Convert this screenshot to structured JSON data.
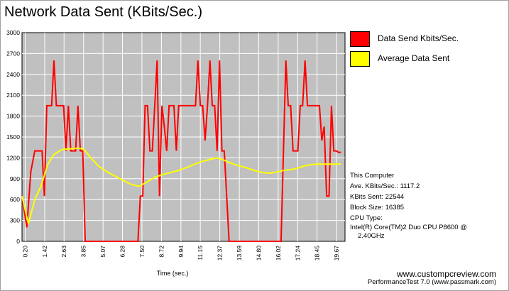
{
  "window": {
    "title": "Network Data Sent (KBits/Sec.)"
  },
  "legend": [
    {
      "label": "Data Send Kbits/Sec.",
      "color": "#ff0000"
    },
    {
      "label": "Average Data Sent",
      "color": "#ffff00"
    }
  ],
  "info": {
    "computer": "This Computer",
    "ave": "Ave. KBits/Sec.: 1117.2",
    "sent": "KBits Sent: 22544",
    "block": "Block Size: 16385",
    "cpu_label": "CPU Type:",
    "cpu_line1": "Intel(R) Core(TM)2 Duo CPU P8600 @",
    "cpu_line2": "2.40GHz"
  },
  "footer": {
    "url": "www.custompcreview.com",
    "product": "PerformanceTest 7.0 (www.passmark.com)"
  },
  "colors": {
    "plot_bg": "#c0c0c0",
    "grid": "#ffffff",
    "send_line": "#ff0000",
    "avg_line": "#ffff00"
  },
  "chart_data": {
    "type": "line",
    "title": "Network Data Sent (KBits/Sec.)",
    "xlabel": "Time (sec.)",
    "ylabel": "",
    "ylim": [
      0,
      3000
    ],
    "xlim": [
      0,
      20.2
    ],
    "yticks": [
      "0",
      "300",
      "600",
      "900",
      "1200",
      "1500",
      "1800",
      "2100",
      "2400",
      "2700",
      "3000"
    ],
    "xticks": [
      "0.20",
      "1.42",
      "2.63",
      "3.85",
      "5.07",
      "6.28",
      "7.50",
      "8.72",
      "9.94",
      "11.15",
      "12.37",
      "13.59",
      "14.80",
      "16.02",
      "17.24",
      "18.45",
      "19.67"
    ],
    "grid": true,
    "legend_position": "right",
    "series": [
      {
        "name": "Data Send Kbits/Sec.",
        "x": [
          0.0,
          0.3,
          0.55,
          0.8,
          1.1,
          1.25,
          1.4,
          1.55,
          1.7,
          1.85,
          2.0,
          2.15,
          2.3,
          2.45,
          2.6,
          2.75,
          2.9,
          3.05,
          3.2,
          3.35,
          3.5,
          3.65,
          3.8,
          3.95,
          4.1,
          4.25,
          7.25,
          7.4,
          7.55,
          7.7,
          7.85,
          8.0,
          8.15,
          8.3,
          8.45,
          8.6,
          8.75,
          8.9,
          9.05,
          9.2,
          9.35,
          9.5,
          9.65,
          9.8,
          9.95,
          10.1,
          10.25,
          10.4,
          10.55,
          10.7,
          10.85,
          11.0,
          11.15,
          11.3,
          11.45,
          11.6,
          11.75,
          11.9,
          12.05,
          12.2,
          12.35,
          12.5,
          12.65,
          12.8,
          12.95,
          13.1,
          16.2,
          16.35,
          16.5,
          16.65,
          16.8,
          16.95,
          17.1,
          17.25,
          17.4,
          17.55,
          17.7,
          17.85,
          18.0,
          18.15,
          18.3,
          18.45,
          18.6,
          18.75,
          18.9,
          19.05,
          19.2,
          19.35,
          19.5,
          19.65,
          19.8,
          19.95
        ],
        "y": [
          650,
          200,
          1000,
          1300,
          1300,
          1300,
          650,
          1950,
          1950,
          1950,
          2600,
          1950,
          1950,
          1950,
          1950,
          1300,
          1950,
          1300,
          1300,
          1300,
          1950,
          1300,
          1300,
          0,
          0,
          0,
          0,
          650,
          650,
          1950,
          1950,
          1300,
          1300,
          1950,
          2600,
          650,
          1950,
          1650,
          1300,
          1950,
          1950,
          1950,
          1300,
          1950,
          1950,
          1950,
          1950,
          1950,
          1950,
          1950,
          1950,
          2600,
          1950,
          1950,
          1450,
          1950,
          2600,
          1950,
          1950,
          1300,
          2600,
          1300,
          1300,
          650,
          0,
          0,
          0,
          1300,
          2600,
          1950,
          1950,
          1300,
          1300,
          1300,
          1950,
          1950,
          2600,
          1950,
          1950,
          1950,
          1950,
          1950,
          1950,
          1450,
          1650,
          650,
          650,
          1950,
          1300,
          1300,
          1280,
          1280
        ]
      },
      {
        "name": "Average Data Sent",
        "x": [
          0.0,
          0.4,
          0.8,
          1.2,
          1.6,
          2.0,
          2.5,
          3.0,
          3.5,
          3.85,
          4.3,
          4.8,
          5.3,
          5.8,
          6.3,
          6.8,
          7.3,
          7.8,
          8.3,
          8.8,
          9.3,
          9.8,
          10.3,
          10.8,
          11.3,
          11.8,
          12.2,
          12.6,
          13.0,
          13.5,
          14.0,
          14.5,
          15.0,
          15.5,
          16.0,
          16.4,
          16.8,
          17.2,
          17.6,
          18.0,
          18.5,
          19.0,
          19.5,
          19.95
        ],
        "y": [
          650,
          250,
          600,
          800,
          1100,
          1250,
          1320,
          1330,
          1340,
          1330,
          1200,
          1080,
          1000,
          940,
          880,
          820,
          790,
          850,
          920,
          960,
          990,
          1020,
          1060,
          1110,
          1150,
          1180,
          1200,
          1170,
          1130,
          1090,
          1060,
          1020,
          990,
          980,
          1000,
          1020,
          1030,
          1050,
          1080,
          1100,
          1110,
          1110,
          1110,
          1110
        ]
      }
    ]
  }
}
